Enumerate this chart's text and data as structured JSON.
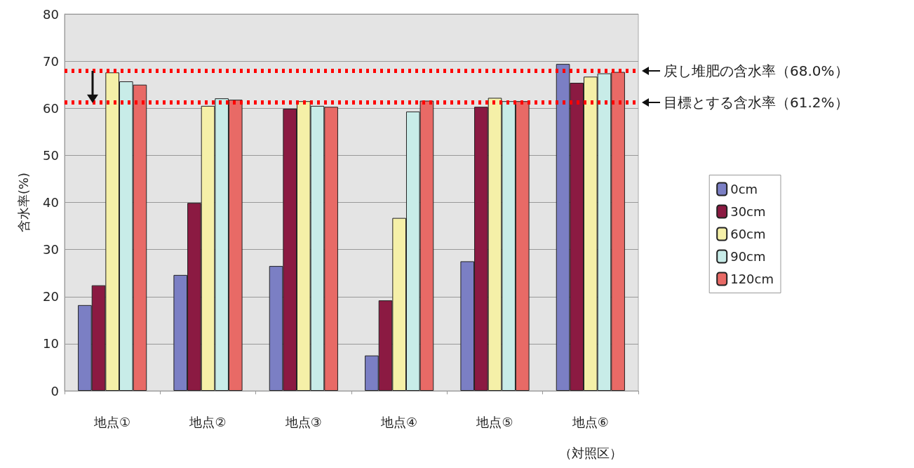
{
  "chart_data": {
    "type": "bar",
    "ylabel": "含水率(%)",
    "categories": [
      "地点①",
      "地点②",
      "地点③",
      "地点④",
      "地点⑤",
      "地点⑥\n（対照区）"
    ],
    "series": [
      {
        "name": "0cm",
        "color": "#7b7fc4",
        "values": [
          18.2,
          24.6,
          26.5,
          7.5,
          27.5,
          69.4
        ]
      },
      {
        "name": "30cm",
        "color": "#8b1a42",
        "values": [
          22.4,
          39.9,
          59.9,
          19.2,
          60.3,
          65.4
        ]
      },
      {
        "name": "60cm",
        "color": "#f5f0a8",
        "values": [
          67.6,
          60.5,
          61.5,
          36.7,
          62.2,
          66.7
        ]
      },
      {
        "name": "90cm",
        "color": "#c8ece8",
        "values": [
          65.7,
          62.1,
          60.5,
          59.3,
          61.5,
          67.4
        ]
      },
      {
        "name": "120cm",
        "color": "#e86a66",
        "values": [
          65.0,
          61.8,
          60.3,
          61.6,
          61.5,
          67.7
        ]
      }
    ],
    "ylim": [
      0,
      80
    ],
    "yticks": [
      0,
      10,
      20,
      30,
      40,
      50,
      60,
      70,
      80
    ],
    "grid": "y",
    "legend": "right",
    "ref_lines": [
      {
        "axis": "y",
        "value": 68.0,
        "label": "戻し堆肥の含水率（68.0%）",
        "color": "#ff0000",
        "line_style": "dotted"
      },
      {
        "axis": "y",
        "value": 61.2,
        "label": "目標とする含水率（61.2%）",
        "color": "#ff0000",
        "line_style": "dotted"
      }
    ]
  }
}
